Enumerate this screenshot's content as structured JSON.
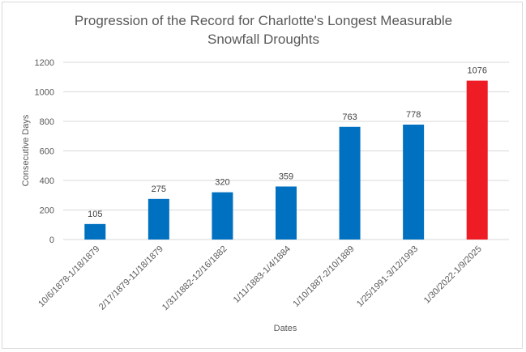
{
  "chart_data": {
    "type": "bar",
    "title_lines": [
      "Progression of the Record for Charlotte's Longest Measurable",
      "Snowfall Droughts"
    ],
    "xlabel": "Dates",
    "ylabel": "Consecutive Days",
    "ylim": [
      0,
      1200
    ],
    "yticks": [
      "0",
      "200",
      "400",
      "600",
      "800",
      "1000",
      "1200"
    ],
    "grid": true,
    "legend": "none",
    "categories": [
      "10/6/1878-1/18/1879",
      "2/17/1879-11/18/1879",
      "1/31/1882-12/16/1882",
      "1/11/1883-1/4/1884",
      "1/10/1887-2/10/1889",
      "1/25/1991-3/12/1993",
      "1/30/2022-1/9/2025"
    ],
    "values": [
      105,
      275,
      320,
      359,
      763,
      778,
      1076
    ],
    "value_labels": [
      "105",
      "275",
      "320",
      "359",
      "763",
      "778",
      "1076"
    ],
    "colors": [
      "#0070C0",
      "#0070C0",
      "#0070C0",
      "#0070C0",
      "#0070C0",
      "#0070C0",
      "#EE1C25"
    ]
  }
}
